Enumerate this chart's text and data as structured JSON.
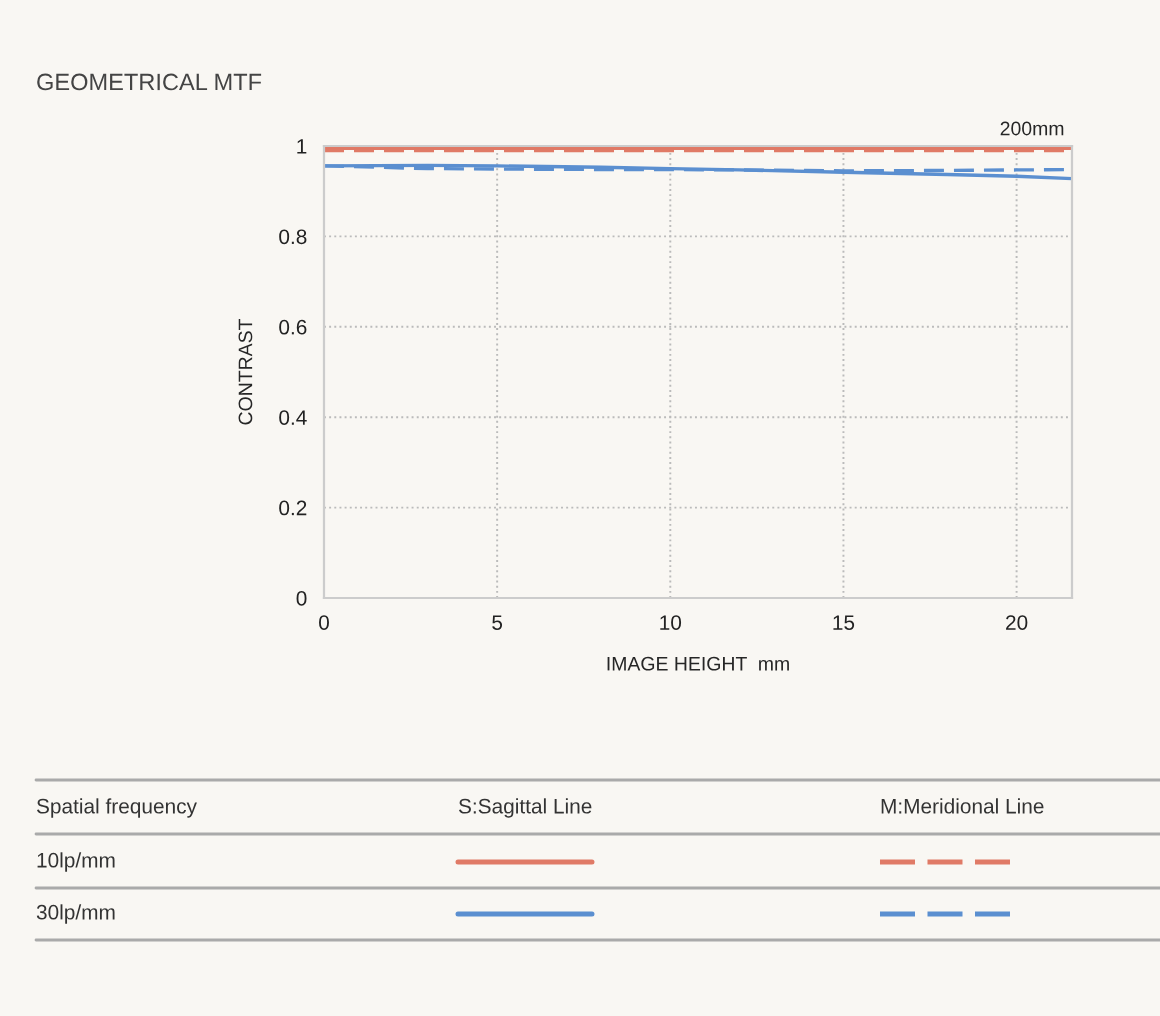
{
  "chart_data": {
    "type": "line",
    "title": "GEOMETRICAL MTF",
    "xlabel": "IMAGE HEIGHT  mm",
    "ylabel": "CONTRAST",
    "x": [
      0,
      3,
      5,
      8,
      10,
      12,
      15,
      18,
      20,
      21.6
    ],
    "series": [
      {
        "color": "#e07a66",
        "line_style": "solid",
        "values": [
          0.995,
          0.995,
          0.995,
          0.995,
          0.995,
          0.995,
          0.995,
          0.995,
          0.995,
          0.995
        ]
      },
      {
        "color": "#e07a66",
        "line_style": "dashed",
        "values": [
          0.99,
          0.99,
          0.99,
          0.99,
          0.99,
          0.99,
          0.99,
          0.99,
          0.99,
          0.99
        ]
      },
      {
        "color": "#5b8fd0",
        "line_style": "solid",
        "values": [
          0.956,
          0.957,
          0.956,
          0.953,
          0.95,
          0.947,
          0.942,
          0.937,
          0.933,
          0.928
        ]
      },
      {
        "color": "#5b8fd0",
        "line_style": "dashed",
        "values": [
          0.956,
          0.95,
          0.949,
          0.948,
          0.948,
          0.947,
          0.945,
          0.946,
          0.947,
          0.948
        ]
      }
    ],
    "xlim": [
      0,
      21.6
    ],
    "xticks": [
      0,
      5,
      10,
      15,
      20
    ],
    "ylim": [
      0,
      1
    ],
    "yticks": [
      0,
      0.2,
      0.4,
      0.6,
      0.8,
      1
    ],
    "grid": true,
    "legend_title": "Spatial frequency",
    "annotations": [
      "200mm",
      "S:Sagittal Line",
      "M:Meridional Line",
      "10lp/mm",
      "30lp/mm"
    ]
  }
}
